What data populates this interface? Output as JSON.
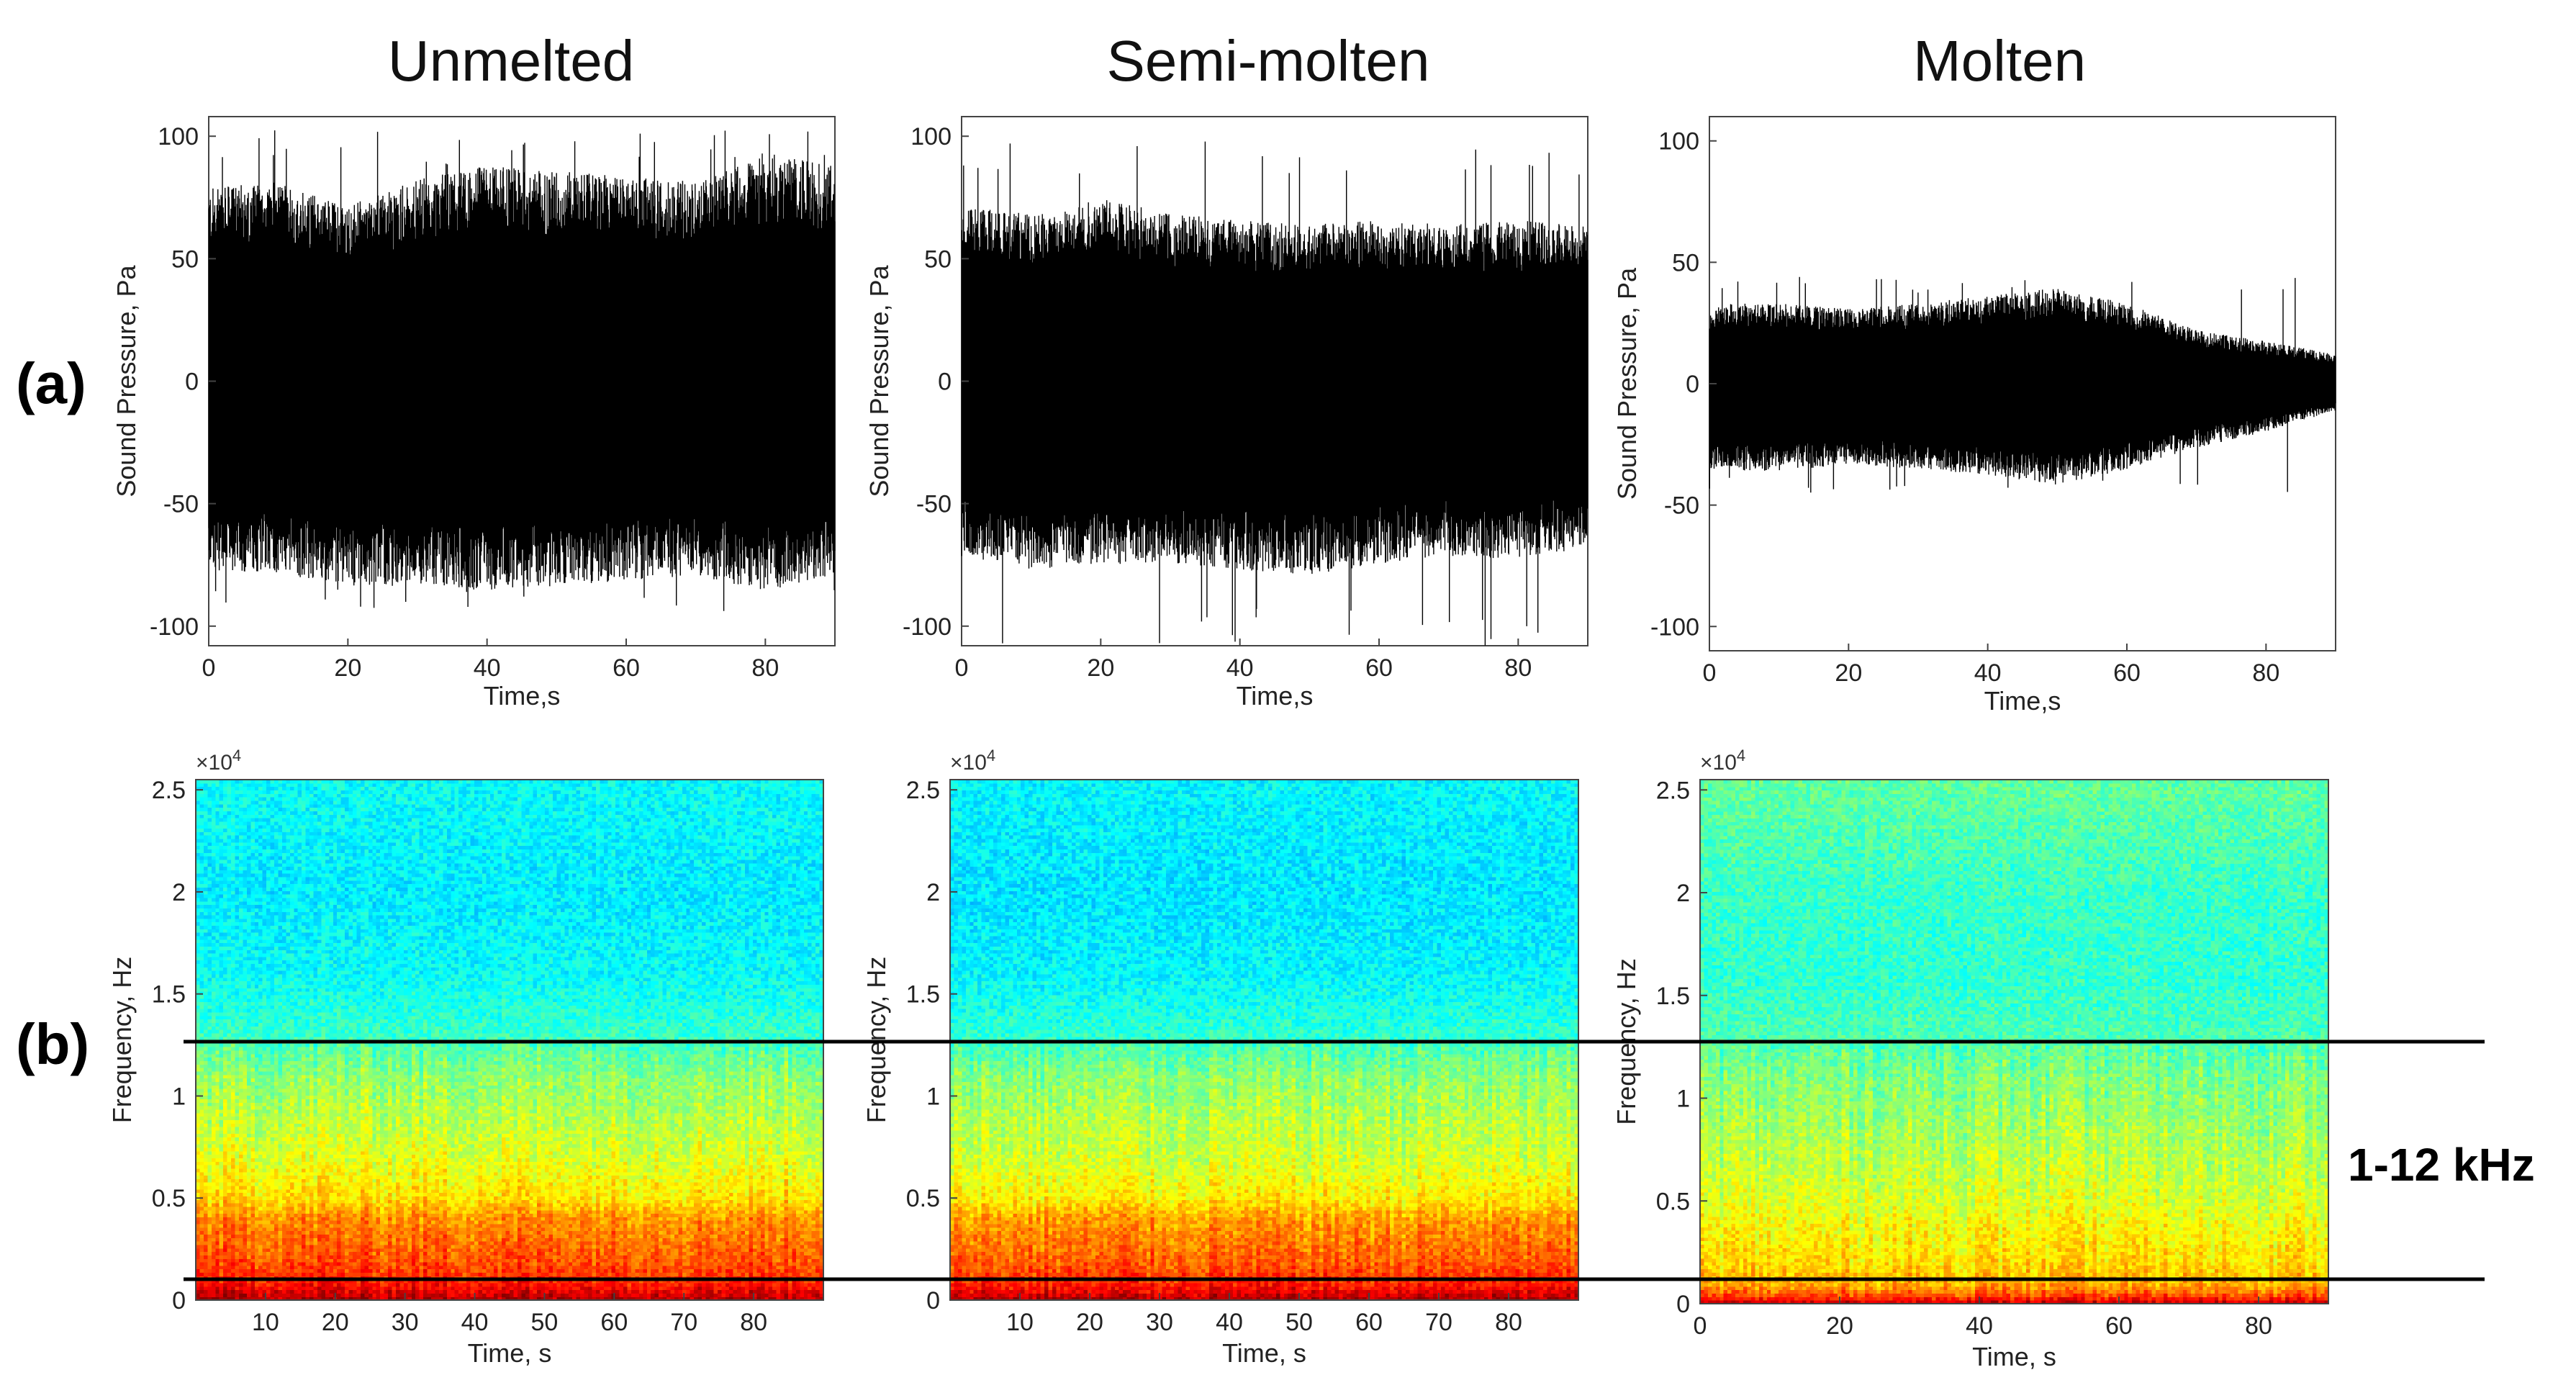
{
  "figure": {
    "row_labels": [
      "(a)",
      "(b)"
    ],
    "band_label": "1-12 kHz",
    "band_line_color": "#000000"
  },
  "chart_data": [
    {
      "type": "line",
      "title": "Unmelted",
      "xlabel": "Time,s",
      "ylabel": "Sound Pressure, Pa",
      "xlim": [
        0,
        90
      ],
      "ylim": [
        -108,
        108
      ],
      "xticks": [
        0,
        20,
        40,
        60,
        80
      ],
      "yticks": [
        -100,
        -50,
        0,
        50,
        100
      ],
      "series": [
        {
          "x": [
            0,
            10,
            20,
            30,
            40,
            50,
            60,
            70,
            80,
            90
          ],
          "envelope_upper": [
            72,
            74,
            65,
            75,
            80,
            78,
            76,
            74,
            85,
            80
          ],
          "envelope_lower": [
            -70,
            -72,
            -76,
            -75,
            -78,
            -76,
            -74,
            -72,
            -78,
            -72
          ],
          "peak_max": 103,
          "peak_min": -96
        }
      ],
      "color": "#000000"
    },
    {
      "type": "line",
      "title": "Semi-molten",
      "xlabel": "Time,s",
      "ylabel": "Sound Pressure, Pa",
      "xlim": [
        0,
        90
      ],
      "ylim": [
        -108,
        108
      ],
      "xticks": [
        0,
        20,
        40,
        60,
        80
      ],
      "yticks": [
        -100,
        -50,
        0,
        50,
        100
      ],
      "series": [
        {
          "x": [
            0,
            10,
            20,
            30,
            40,
            50,
            60,
            70,
            80,
            90
          ],
          "envelope_upper": [
            65,
            62,
            68,
            62,
            60,
            58,
            60,
            58,
            60,
            58
          ],
          "envelope_lower": [
            -65,
            -70,
            -68,
            -68,
            -70,
            -72,
            -68,
            -65,
            -66,
            -62
          ],
          "peak_max": 98,
          "peak_min": -108
        }
      ],
      "color": "#000000"
    },
    {
      "type": "line",
      "title": "Molten",
      "xlabel": "Time,s",
      "ylabel": "Sound Pressure, Pa",
      "xlim": [
        0,
        90
      ],
      "ylim": [
        -110,
        110
      ],
      "xticks": [
        0,
        20,
        40,
        60,
        80
      ],
      "yticks": [
        -100,
        -50,
        0,
        50,
        100
      ],
      "series": [
        {
          "x": [
            0,
            10,
            20,
            30,
            40,
            50,
            60,
            70,
            80,
            90
          ],
          "envelope_upper": [
            30,
            30,
            28,
            30,
            33,
            36,
            30,
            20,
            16,
            11
          ],
          "envelope_lower": [
            -32,
            -33,
            -30,
            -32,
            -34,
            -38,
            -32,
            -24,
            -18,
            -10
          ],
          "peak_max": 44,
          "peak_min": -45
        }
      ],
      "color": "#000000"
    },
    {
      "type": "heatmap",
      "title": "",
      "xlabel": "Time, s",
      "ylabel": "Frequency, Hz",
      "y_multiplier": "×10",
      "y_multiplier_exp": "4",
      "xlim": [
        0,
        90
      ],
      "ylim": [
        0,
        2.55
      ],
      "xticks": [
        10,
        20,
        30,
        40,
        50,
        60,
        70,
        80
      ],
      "yticks": [
        0,
        0.5,
        1,
        1.5,
        2,
        2.5
      ],
      "colormap": "jet",
      "intensity_profile": {
        "frequency": [
          0,
          0.05,
          0.1,
          0.2,
          0.3,
          0.4,
          0.5,
          0.7,
          0.9,
          1.1,
          1.3,
          1.6,
          2.0,
          2.5
        ],
        "level": [
          0.97,
          0.9,
          0.84,
          0.8,
          0.77,
          0.74,
          0.66,
          0.6,
          0.56,
          0.52,
          0.43,
          0.38,
          0.36,
          0.38
        ]
      }
    },
    {
      "type": "heatmap",
      "title": "",
      "xlabel": "Time, s",
      "ylabel": "Frequency, Hz",
      "y_multiplier": "×10",
      "y_multiplier_exp": "4",
      "xlim": [
        0,
        90
      ],
      "ylim": [
        0,
        2.55
      ],
      "xticks": [
        10,
        20,
        30,
        40,
        50,
        60,
        70,
        80
      ],
      "yticks": [
        0,
        0.5,
        1,
        1.5,
        2,
        2.5
      ],
      "colormap": "jet",
      "intensity_profile": {
        "frequency": [
          0,
          0.05,
          0.1,
          0.2,
          0.3,
          0.4,
          0.5,
          0.7,
          0.9,
          1.1,
          1.3,
          1.6,
          2.0,
          2.5
        ],
        "level": [
          0.97,
          0.88,
          0.83,
          0.78,
          0.75,
          0.72,
          0.64,
          0.58,
          0.55,
          0.51,
          0.42,
          0.37,
          0.35,
          0.37
        ]
      }
    },
    {
      "type": "heatmap",
      "title": "",
      "xlabel": "Time, s",
      "ylabel": "Frequency, Hz",
      "y_multiplier": "×10",
      "y_multiplier_exp": "4",
      "xlim": [
        0,
        90
      ],
      "ylim": [
        0,
        2.55
      ],
      "xticks": [
        0,
        20,
        40,
        60,
        80
      ],
      "yticks": [
        0,
        0.5,
        1,
        1.5,
        2,
        2.5
      ],
      "colormap": "jet",
      "intensity_profile": {
        "frequency": [
          0,
          0.05,
          0.1,
          0.2,
          0.3,
          0.4,
          0.5,
          0.7,
          0.9,
          1.1,
          1.3,
          1.6,
          2.0,
          2.5
        ],
        "level": [
          0.93,
          0.78,
          0.7,
          0.66,
          0.64,
          0.62,
          0.59,
          0.56,
          0.53,
          0.5,
          0.45,
          0.42,
          0.43,
          0.47
        ]
      }
    }
  ]
}
